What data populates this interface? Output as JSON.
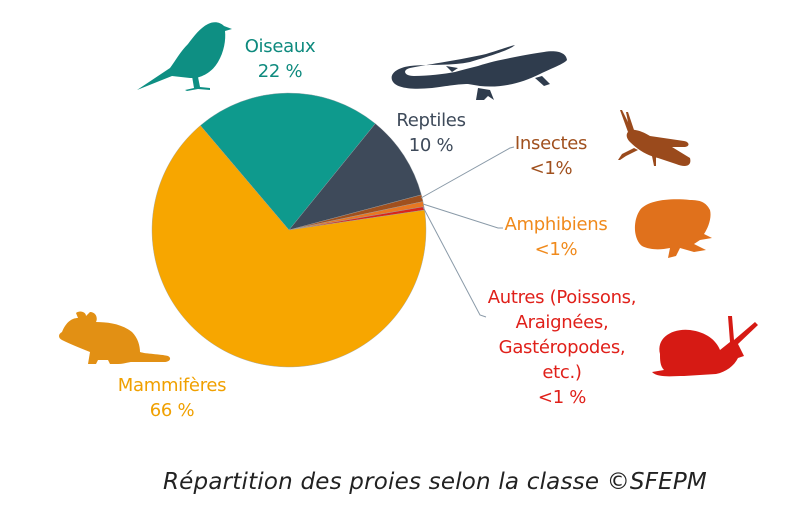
{
  "chart_data": {
    "type": "pie",
    "title": "",
    "caption": "Répartition des proies selon la classe ©SFEPM",
    "slices": [
      {
        "label": "Oiseaux",
        "value_label": "22 %",
        "value": 22,
        "color": "#0e9a8d",
        "icon": "bird-icon"
      },
      {
        "label": "Reptiles",
        "value_label": "10 %",
        "value": 10,
        "color": "#3e4a5a",
        "icon": "lizard-icon"
      },
      {
        "label": "Insectes",
        "value_label": "<1%",
        "value": 0.8,
        "color": "#a0501e",
        "icon": "grasshopper-icon"
      },
      {
        "label": "Amphibiens",
        "value_label": "<1%",
        "value": 0.6,
        "color": "#e87722",
        "icon": "frog-icon"
      },
      {
        "label": "Autres (Poissons, Araignées, Gastéropodes, etc.)",
        "value_label": "<1 %",
        "value": 0.4,
        "color": "#d9251c",
        "icon": "snail-icon"
      },
      {
        "label": "Mammifères",
        "value_label": "66 %",
        "value": 66,
        "color": "#f7a600",
        "icon": "mouse-icon"
      }
    ],
    "legend": "none (direct labels with leader lines)"
  },
  "labels": {
    "oiseaux": {
      "name": "Oiseaux",
      "pct": "22 %",
      "color": "#0e8a7e"
    },
    "reptiles": {
      "name": "Reptiles",
      "pct": "10 %",
      "color": "#3e4a5a"
    },
    "insectes": {
      "name": "Insectes",
      "pct": "<1%",
      "color": "#a0501e"
    },
    "amphibiens": {
      "name": "Amphibiens",
      "pct": "<1%",
      "color": "#f08a1c"
    },
    "autres": {
      "line1": "Autres (Poissons,",
      "line2": "Araignées,",
      "line3": "Gastéropodes,",
      "line4": "etc.)",
      "pct": "<1 %",
      "color": "#e0201a"
    },
    "mammiferes": {
      "name": "Mammifères",
      "pct": "66 %",
      "color": "#f0a000"
    }
  },
  "caption": "Répartition des proies selon la classe ©SFEPM"
}
